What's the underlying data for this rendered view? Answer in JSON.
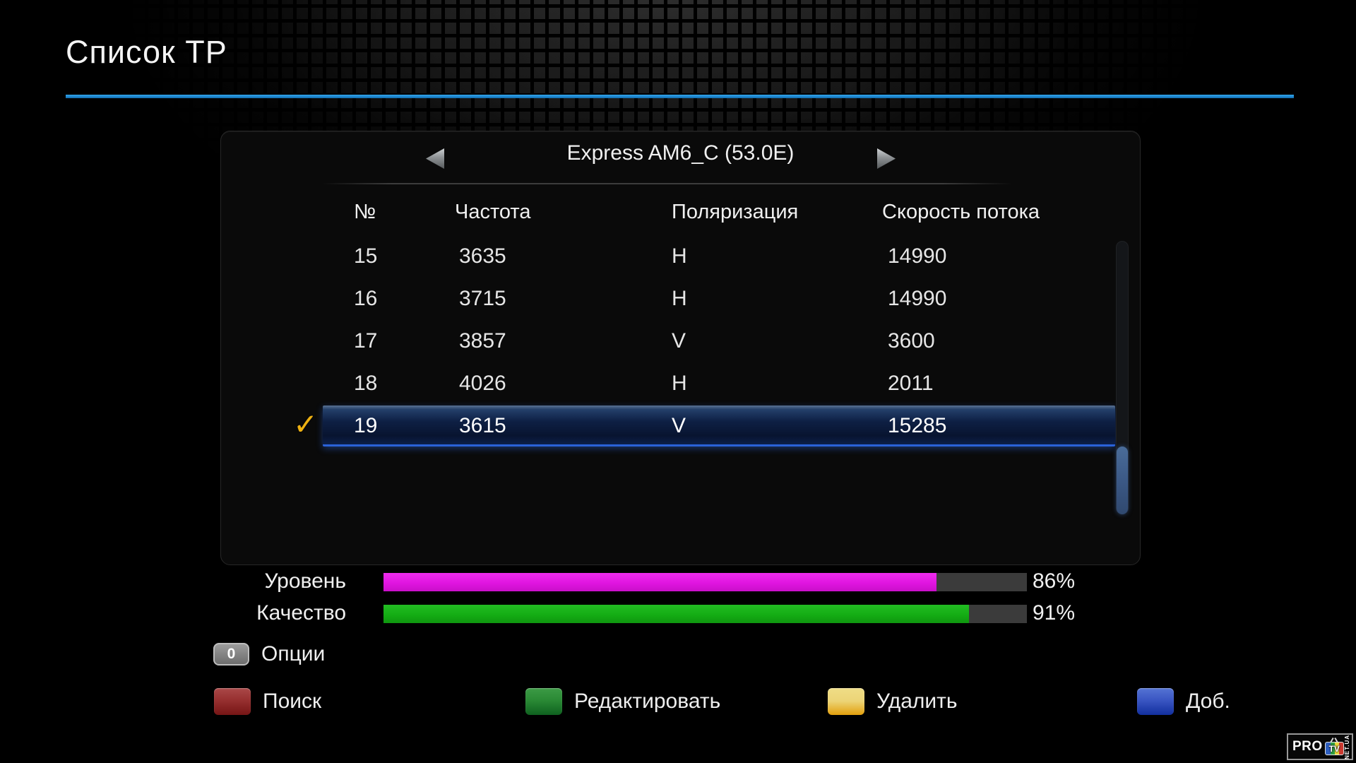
{
  "title": "Список ТР",
  "accent_color": "#1d86cf",
  "panel": {
    "satellite": "Express AM6_C (53.0E)",
    "columns": [
      "№",
      "Частота",
      "Поляризация",
      "Скорость потока"
    ],
    "rows": [
      {
        "num": "15",
        "freq": "3635",
        "pol": "H",
        "symbol_rate": "14990"
      },
      {
        "num": "16",
        "freq": "3715",
        "pol": "H",
        "symbol_rate": "14990"
      },
      {
        "num": "17",
        "freq": "3857",
        "pol": "V",
        "symbol_rate": "3600"
      },
      {
        "num": "18",
        "freq": "4026",
        "pol": "H",
        "symbol_rate": "2011"
      },
      {
        "num": "19",
        "freq": "3615",
        "pol": "V",
        "symbol_rate": "15285"
      }
    ],
    "selected_row_index": 4
  },
  "icons": {
    "checkmark": "✓",
    "arrow_left": "◀",
    "arrow_right": "▶"
  },
  "signal": {
    "level": {
      "label": "Уровень",
      "value": 86,
      "text": "86%",
      "color": "#e015e0"
    },
    "quality": {
      "label": "Качество",
      "value": 91,
      "text": "91%",
      "color": "#14ad14"
    }
  },
  "options_hint": {
    "key": "0",
    "label": "Опции"
  },
  "color_buttons": [
    {
      "name": "red",
      "label": "Поиск",
      "color": "#973030"
    },
    {
      "name": "green",
      "label": "Редактировать",
      "color": "#2a8a35"
    },
    {
      "name": "yellow",
      "label": "Удалить",
      "color": "#ecd477"
    },
    {
      "name": "blue",
      "label": "Доб.",
      "color": "#3a56c3"
    }
  ],
  "logo": {
    "pro": "PRO",
    "tv": "TV",
    "suffix": "NET.UA"
  }
}
